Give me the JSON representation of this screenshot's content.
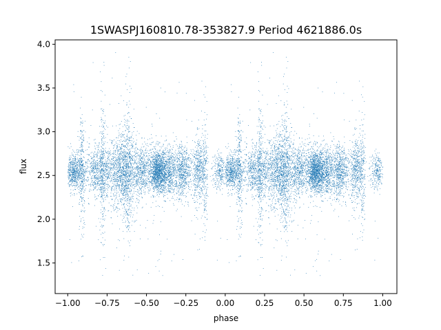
{
  "chart_data": {
    "type": "scatter",
    "title": "1SWASPJ160810.78-353827.9 Period 4621886.0s",
    "xlabel": "phase",
    "ylabel": "flux",
    "xlim": [
      -1.08,
      1.09
    ],
    "ylim": [
      1.15,
      4.05
    ],
    "xticks": [
      -1.0,
      -0.75,
      -0.5,
      -0.25,
      0.0,
      0.25,
      0.5,
      0.75,
      1.0
    ],
    "xtick_labels": [
      "−1.00",
      "−0.75",
      "−0.50",
      "−0.25",
      "0.00",
      "0.25",
      "0.50",
      "0.75",
      "1.00"
    ],
    "yticks": [
      1.5,
      2.0,
      2.5,
      3.0,
      3.5,
      4.0
    ],
    "ytick_labels": [
      "1.5",
      "2.0",
      "2.5",
      "3.0",
      "3.5",
      "4.0"
    ],
    "grid": false,
    "marker_color": "#1f77b4",
    "series": [
      {
        "x_range": [
          -1.0,
          1.0
        ],
        "baseline_flux": 2.55,
        "typical_spread": 0.15,
        "note_range": [
          1.3,
          3.95
        ]
      }
    ]
  }
}
